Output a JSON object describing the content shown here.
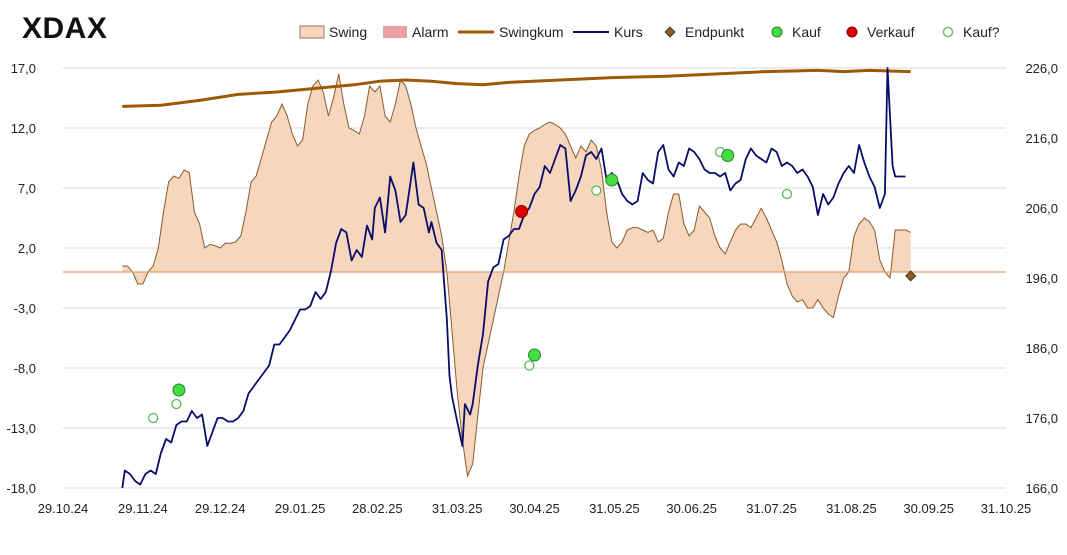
{
  "chart_data": {
    "type": "line",
    "title": "XDAX",
    "legend_position": "top-right",
    "colors": {
      "swing_fill": "#f6d7bd",
      "swing_stroke": "#8b5a2b",
      "alarm": "#e8a0a0",
      "swingkum": "#9c5a06",
      "kurs": "#0b0b6b",
      "endpunkt": "#8b5a2b",
      "kauf": "#44dd44",
      "verkauf": "#dd0000",
      "kauf_q": "#88dd88",
      "grid": "#d9d9d9",
      "zero_line": "#e0a070",
      "neg_tick": "#cc0000"
    },
    "legend": [
      {
        "key": "swing",
        "label": "Swing"
      },
      {
        "key": "alarm",
        "label": "Alarm"
      },
      {
        "key": "swingkum",
        "label": "Swingkum"
      },
      {
        "key": "kurs",
        "label": "Kurs"
      },
      {
        "key": "endpunkt",
        "label": "Endpunkt"
      },
      {
        "key": "kauf",
        "label": "Kauf"
      },
      {
        "key": "verkauf",
        "label": "Verkauf"
      },
      {
        "key": "kauf_q",
        "label": "Kauf?"
      }
    ],
    "x_range": [
      0,
      366
    ],
    "x_ticks": [
      {
        "label": "29.10.24",
        "x": 0
      },
      {
        "label": "29.11.24",
        "x": 31
      },
      {
        "label": "29.12.24",
        "x": 61
      },
      {
        "label": "29.01.25",
        "x": 92
      },
      {
        "label": "28.02.25",
        "x": 122
      },
      {
        "label": "31.03.25",
        "x": 153
      },
      {
        "label": "30.04.25",
        "x": 183
      },
      {
        "label": "31.05.25",
        "x": 214
      },
      {
        "label": "30.06.25",
        "x": 244
      },
      {
        "label": "31.07.25",
        "x": 275
      },
      {
        "label": "31.08.25",
        "x": 306
      },
      {
        "label": "30.09.25",
        "x": 336
      },
      {
        "label": "31.10.25",
        "x": 366
      }
    ],
    "left_axis": {
      "range": [
        -18,
        17
      ],
      "ticks": [
        {
          "label": "17,0",
          "v": 17
        },
        {
          "label": "12,0",
          "v": 12
        },
        {
          "label": "7,0",
          "v": 7
        },
        {
          "label": "2,0",
          "v": 2
        },
        {
          "label": "-3,0",
          "v": -3
        },
        {
          "label": "-8,0",
          "v": -8
        },
        {
          "label": "-13,0",
          "v": -13
        },
        {
          "label": "-18,0",
          "v": -18
        }
      ]
    },
    "right_axis": {
      "range": [
        166,
        226
      ],
      "ticks": [
        {
          "label": "226,0",
          "v": 226
        },
        {
          "label": "216,0",
          "v": 216
        },
        {
          "label": "206,0",
          "v": 206
        },
        {
          "label": "196,0",
          "v": 196
        },
        {
          "label": "186,0",
          "v": 186
        },
        {
          "label": "176,0",
          "v": 176
        },
        {
          "label": "166,0",
          "v": 166
        }
      ]
    },
    "swing": [
      [
        23,
        0.5
      ],
      [
        25,
        0.5
      ],
      [
        27,
        0
      ],
      [
        29,
        -1
      ],
      [
        31,
        -1
      ],
      [
        33,
        0
      ],
      [
        35,
        0.5
      ],
      [
        37,
        2
      ],
      [
        39,
        5
      ],
      [
        41,
        7.5
      ],
      [
        43,
        8
      ],
      [
        45,
        7.8
      ],
      [
        47,
        8.5
      ],
      [
        49,
        8.3
      ],
      [
        51,
        5
      ],
      [
        53,
        4
      ],
      [
        55,
        2
      ],
      [
        57,
        2.3
      ],
      [
        59,
        2.2
      ],
      [
        61,
        2
      ],
      [
        63,
        2.4
      ],
      [
        65,
        2.4
      ],
      [
        67,
        2.5
      ],
      [
        69,
        3
      ],
      [
        71,
        5
      ],
      [
        73,
        7.5
      ],
      [
        75,
        8
      ],
      [
        77,
        9.5
      ],
      [
        79,
        11
      ],
      [
        81,
        12.5
      ],
      [
        83,
        13
      ],
      [
        85,
        14
      ],
      [
        87,
        13
      ],
      [
        89,
        11.5
      ],
      [
        91,
        10.5
      ],
      [
        93,
        11
      ],
      [
        95,
        14
      ],
      [
        97,
        15.5
      ],
      [
        99,
        16
      ],
      [
        101,
        15
      ],
      [
        103,
        13
      ],
      [
        105,
        14.5
      ],
      [
        107,
        16.5
      ],
      [
        109,
        14
      ],
      [
        111,
        12
      ],
      [
        113,
        11.8
      ],
      [
        115,
        11.5
      ],
      [
        117,
        13
      ],
      [
        119,
        15.5
      ],
      [
        121,
        15
      ],
      [
        123,
        15.5
      ],
      [
        125,
        13
      ],
      [
        127,
        12.5
      ],
      [
        129,
        14
      ],
      [
        131,
        16
      ],
      [
        133,
        15.5
      ],
      [
        135,
        14
      ],
      [
        137,
        12
      ],
      [
        139,
        10.5
      ],
      [
        141,
        9
      ],
      [
        143,
        7
      ],
      [
        145,
        5
      ],
      [
        147,
        3
      ],
      [
        149,
        0
      ],
      [
        151,
        -5
      ],
      [
        153,
        -10
      ],
      [
        155,
        -14
      ],
      [
        157,
        -17
      ],
      [
        159,
        -16
      ],
      [
        161,
        -12
      ],
      [
        163,
        -8
      ],
      [
        165,
        -6
      ],
      [
        167,
        -4
      ],
      [
        169,
        -2
      ],
      [
        171,
        0
      ],
      [
        173,
        2.5
      ],
      [
        175,
        5
      ],
      [
        177,
        8
      ],
      [
        179,
        10.5
      ],
      [
        181,
        11.5
      ],
      [
        183,
        11.8
      ],
      [
        185,
        12
      ],
      [
        187,
        12.3
      ],
      [
        189,
        12.5
      ],
      [
        191,
        12.3
      ],
      [
        193,
        12
      ],
      [
        195,
        11.5
      ],
      [
        197,
        10.5
      ],
      [
        199,
        9.5
      ],
      [
        201,
        10.5
      ],
      [
        203,
        10
      ],
      [
        205,
        11
      ],
      [
        207,
        10.5
      ],
      [
        209,
        8.5
      ],
      [
        211,
        5
      ],
      [
        213,
        2.5
      ],
      [
        215,
        2
      ],
      [
        217,
        2.5
      ],
      [
        219,
        3.5
      ],
      [
        221,
        3.7
      ],
      [
        223,
        3.7
      ],
      [
        225,
        3.5
      ],
      [
        227,
        3.3
      ],
      [
        229,
        3.5
      ],
      [
        231,
        2.5
      ],
      [
        233,
        2.8
      ],
      [
        235,
        5
      ],
      [
        237,
        6.5
      ],
      [
        239,
        6.5
      ],
      [
        241,
        4
      ],
      [
        243,
        3
      ],
      [
        245,
        3.5
      ],
      [
        247,
        5.5
      ],
      [
        249,
        5
      ],
      [
        251,
        4.5
      ],
      [
        253,
        3
      ],
      [
        255,
        2
      ],
      [
        257,
        1.5
      ],
      [
        259,
        2.5
      ],
      [
        261,
        3.5
      ],
      [
        263,
        4
      ],
      [
        265,
        4
      ],
      [
        267,
        3.7
      ],
      [
        269,
        4.5
      ],
      [
        271,
        5.3
      ],
      [
        273,
        4.5
      ],
      [
        275,
        3.5
      ],
      [
        277,
        2.5
      ],
      [
        279,
        1
      ],
      [
        281,
        -1
      ],
      [
        283,
        -2
      ],
      [
        285,
        -2.5
      ],
      [
        287,
        -2.3
      ],
      [
        289,
        -3
      ],
      [
        291,
        -3
      ],
      [
        293,
        -2.3
      ],
      [
        295,
        -3
      ],
      [
        297,
        -3.5
      ],
      [
        299,
        -3.8
      ],
      [
        301,
        -2
      ],
      [
        303,
        -0.5
      ],
      [
        305,
        0
      ],
      [
        307,
        3
      ],
      [
        309,
        4
      ],
      [
        311,
        4.5
      ],
      [
        313,
        4.2
      ],
      [
        315,
        3.5
      ],
      [
        317,
        1
      ],
      [
        319,
        0
      ],
      [
        321,
        -0.5
      ],
      [
        323,
        3.5
      ],
      [
        325,
        3.5
      ],
      [
        327,
        3.5
      ],
      [
        329,
        3.3
      ]
    ],
    "swingkum": [
      [
        23,
        13.8
      ],
      [
        38,
        13.9
      ],
      [
        53,
        14.3
      ],
      [
        68,
        14.8
      ],
      [
        83,
        15
      ],
      [
        98,
        15.3
      ],
      [
        113,
        15.6
      ],
      [
        123,
        15.9
      ],
      [
        133,
        16
      ],
      [
        143,
        15.9
      ],
      [
        153,
        15.7
      ],
      [
        163,
        15.6
      ],
      [
        173,
        15.8
      ],
      [
        193,
        16
      ],
      [
        213,
        16.2
      ],
      [
        233,
        16.3
      ],
      [
        253,
        16.5
      ],
      [
        273,
        16.7
      ],
      [
        293,
        16.8
      ],
      [
        303,
        16.7
      ],
      [
        313,
        16.8
      ],
      [
        329,
        16.7
      ]
    ],
    "kurs": [
      [
        23,
        166
      ],
      [
        24,
        168.5
      ],
      [
        26,
        168
      ],
      [
        28,
        167
      ],
      [
        30,
        166.5
      ],
      [
        32,
        168
      ],
      [
        34,
        168.5
      ],
      [
        36,
        168
      ],
      [
        38,
        171
      ],
      [
        40,
        173
      ],
      [
        42,
        172.5
      ],
      [
        44,
        175
      ],
      [
        46,
        175.5
      ],
      [
        48,
        175.5
      ],
      [
        50,
        177
      ],
      [
        52,
        176
      ],
      [
        54,
        176.5
      ],
      [
        56,
        172
      ],
      [
        58,
        174
      ],
      [
        60,
        176
      ],
      [
        62,
        176
      ],
      [
        64,
        175.5
      ],
      [
        66,
        175.5
      ],
      [
        68,
        176
      ],
      [
        70,
        177
      ],
      [
        72,
        179.5
      ],
      [
        74,
        180.5
      ],
      [
        76,
        181.5
      ],
      [
        78,
        182.5
      ],
      [
        80,
        183.5
      ],
      [
        82,
        186.5
      ],
      [
        84,
        186.5
      ],
      [
        86,
        187.5
      ],
      [
        88,
        188.5
      ],
      [
        90,
        190
      ],
      [
        92,
        191.5
      ],
      [
        94,
        191.5
      ],
      [
        96,
        192
      ],
      [
        98,
        194
      ],
      [
        100,
        193
      ],
      [
        102,
        194
      ],
      [
        104,
        197
      ],
      [
        106,
        201
      ],
      [
        108,
        203
      ],
      [
        110,
        202.5
      ],
      [
        112,
        198.5
      ],
      [
        114,
        200
      ],
      [
        116,
        199
      ],
      [
        118,
        203.5
      ],
      [
        120,
        201.5
      ],
      [
        121,
        206
      ],
      [
        123,
        207.5
      ],
      [
        125,
        202.5
      ],
      [
        127,
        210.5
      ],
      [
        129,
        208.5
      ],
      [
        131,
        204
      ],
      [
        133,
        205
      ],
      [
        134,
        207.5
      ],
      [
        136,
        212.5
      ],
      [
        138,
        206.5
      ],
      [
        140,
        206
      ],
      [
        142,
        202.5
      ],
      [
        143,
        204
      ],
      [
        145,
        201
      ],
      [
        147,
        200
      ],
      [
        149,
        190
      ],
      [
        150,
        182
      ],
      [
        151,
        179
      ],
      [
        153,
        175.5
      ],
      [
        155,
        172
      ],
      [
        156,
        178
      ],
      [
        158,
        176.5
      ],
      [
        159,
        178
      ],
      [
        161,
        183.5
      ],
      [
        163,
        188
      ],
      [
        165,
        195.5
      ],
      [
        167,
        197.5
      ],
      [
        169,
        198
      ],
      [
        171,
        201.5
      ],
      [
        173,
        202
      ],
      [
        175,
        203
      ],
      [
        177,
        203
      ],
      [
        179,
        205
      ],
      [
        181,
        206
      ],
      [
        183,
        208
      ],
      [
        185,
        209
      ],
      [
        187,
        212
      ],
      [
        189,
        211
      ],
      [
        191,
        213
      ],
      [
        193,
        215
      ],
      [
        195,
        214.5
      ],
      [
        197,
        207
      ],
      [
        199,
        208.5
      ],
      [
        201,
        210.5
      ],
      [
        203,
        213.5
      ],
      [
        205,
        214
      ],
      [
        207,
        213
      ],
      [
        209,
        214.5
      ],
      [
        211,
        210
      ],
      [
        213,
        211
      ],
      [
        215,
        210
      ],
      [
        217,
        208
      ],
      [
        219,
        207
      ],
      [
        221,
        206.5
      ],
      [
        223,
        207
      ],
      [
        225,
        211
      ],
      [
        227,
        210
      ],
      [
        229,
        209.5
      ],
      [
        231,
        214
      ],
      [
        233,
        215
      ],
      [
        235,
        211.5
      ],
      [
        237,
        210.5
      ],
      [
        239,
        212.5
      ],
      [
        241,
        212
      ],
      [
        243,
        214.5
      ],
      [
        245,
        214
      ],
      [
        247,
        213
      ],
      [
        249,
        211.5
      ],
      [
        251,
        211
      ],
      [
        253,
        211
      ],
      [
        255,
        210.5
      ],
      [
        257,
        211
      ],
      [
        259,
        208.5
      ],
      [
        261,
        209.5
      ],
      [
        263,
        210
      ],
      [
        265,
        213
      ],
      [
        267,
        214.5
      ],
      [
        269,
        213.5
      ],
      [
        271,
        213
      ],
      [
        273,
        212.5
      ],
      [
        275,
        214.5
      ],
      [
        277,
        214
      ],
      [
        279,
        212
      ],
      [
        281,
        212.5
      ],
      [
        283,
        212
      ],
      [
        285,
        211
      ],
      [
        287,
        211.5
      ],
      [
        289,
        210.5
      ],
      [
        291,
        209
      ],
      [
        293,
        205
      ],
      [
        295,
        208
      ],
      [
        297,
        206.5
      ],
      [
        299,
        207.5
      ],
      [
        301,
        209.5
      ],
      [
        303,
        211
      ],
      [
        305,
        212
      ],
      [
        307,
        211
      ],
      [
        309,
        215
      ],
      [
        311,
        212.5
      ],
      [
        313,
        210.5
      ],
      [
        315,
        209
      ],
      [
        317,
        206
      ],
      [
        319,
        208
      ],
      [
        320,
        226
      ],
      [
        322,
        212
      ],
      [
        323,
        210.5
      ],
      [
        325,
        210.5
      ],
      [
        327,
        210.5
      ]
    ],
    "markers": {
      "kauf": [
        [
          45,
          180
        ],
        [
          183,
          185
        ],
        [
          213,
          210
        ],
        [
          258,
          213.5
        ]
      ],
      "verkauf": [
        [
          178,
          205.5
        ]
      ],
      "kauf_q": [
        [
          35,
          176
        ],
        [
          44,
          178
        ],
        [
          181,
          183.5
        ],
        [
          207,
          208.5
        ],
        [
          255,
          214
        ],
        [
          281,
          208
        ]
      ],
      "endpunkt": [
        [
          329,
          196.3
        ]
      ]
    }
  }
}
